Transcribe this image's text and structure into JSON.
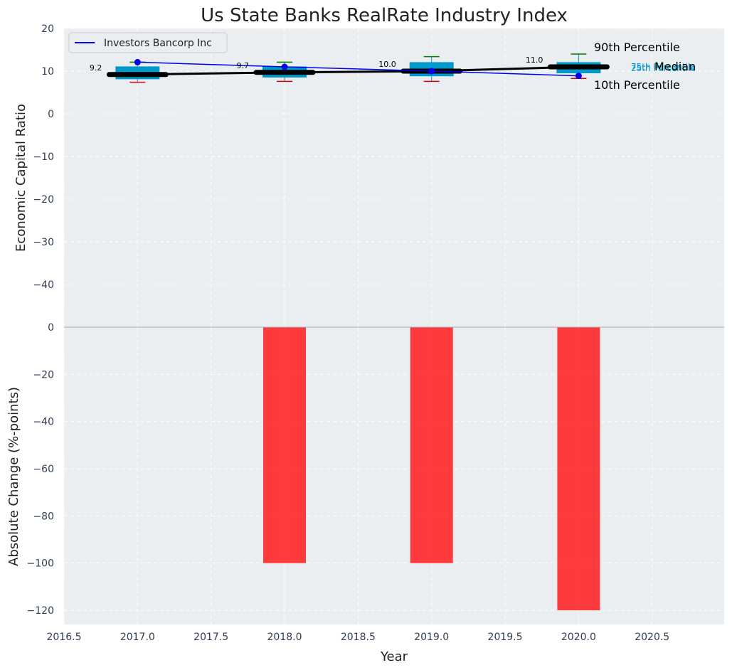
{
  "chart_data": {
    "title": "Us State Banks RealRate Industry Index",
    "top_panel": {
      "type": "box-percentile",
      "ylabel": "Economic Capital Ratio",
      "ylim": [
        -50,
        20
      ],
      "yticks": [
        20,
        10,
        0,
        -10,
        -20,
        -30,
        -40
      ],
      "years": [
        2017,
        2018,
        2019,
        2020
      ],
      "p10": [
        7.4,
        7.6,
        7.6,
        8.3
      ],
      "p25": [
        8.1,
        8.5,
        8.8,
        9.5
      ],
      "median": [
        9.2,
        9.7,
        10.0,
        11.0
      ],
      "p75": [
        11.1,
        11.1,
        12.1,
        12.1
      ],
      "p90": [
        12.1,
        12.1,
        13.4,
        14.0
      ],
      "median_labels": [
        "9.2",
        "9.7",
        "10.0",
        "11.0"
      ],
      "company": {
        "name": "Investors Bancorp Inc",
        "values": [
          12.1,
          11.0,
          10.0,
          8.9
        ]
      },
      "legend": [
        "Investors Bancorp Inc"
      ],
      "annotations": {
        "p90": "90th Percentile",
        "p75": "75th Percentile",
        "median": "Median",
        "p25": "25th Percentile",
        "p10": "10th Percentile"
      }
    },
    "bottom_panel": {
      "type": "bar",
      "xlabel": "Year",
      "ylabel": "Absolute Change (%-points)",
      "ylim": [
        -126,
        0
      ],
      "yticks": [
        0,
        -20,
        -40,
        -60,
        -80,
        -100,
        -120
      ],
      "years": [
        2018,
        2019,
        2020
      ],
      "values": [
        -100,
        -100,
        -120
      ],
      "bar_color": "#ff2222"
    },
    "xlim": [
      2016.5,
      2020.99
    ],
    "xticks": [
      "2016.5",
      "2017.0",
      "2017.5",
      "2018.0",
      "2018.5",
      "2019.0",
      "2019.5",
      "2020.0",
      "2020.5"
    ],
    "colors": {
      "box": "#0099cc",
      "p90_whisker": "#008000",
      "p10_whisker": "#dd0000",
      "median_line": "#000000",
      "company_line": "#0000ee",
      "panel_bg": "#eaeef0"
    }
  }
}
